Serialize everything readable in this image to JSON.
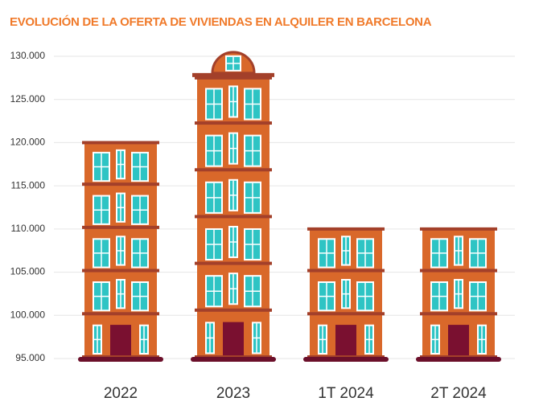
{
  "chart_data": {
    "type": "pictorial-bar",
    "title": "EVOLUCIÓN DE LA OFERTA DE VIVIENDAS EN ALQUILER EN BARCELONA",
    "categories": [
      "2022",
      "2023",
      "1T 2024",
      "2T 2024"
    ],
    "values": [
      120000,
      127500,
      110000,
      110000
    ],
    "color": "#d9682a",
    "ylim": [
      95000,
      130000
    ],
    "yticks": [
      {
        "value": 95000,
        "label": "95.000"
      },
      {
        "value": 100000,
        "label": "100.000"
      },
      {
        "value": 105000,
        "label": "105.000"
      },
      {
        "value": 110000,
        "label": "110.000"
      },
      {
        "value": 115000,
        "label": "115.000"
      },
      {
        "value": 120000,
        "label": "120.000"
      },
      {
        "value": 125000,
        "label": "125.000"
      },
      {
        "value": 130000,
        "label": "130.000"
      }
    ],
    "grid": true
  }
}
